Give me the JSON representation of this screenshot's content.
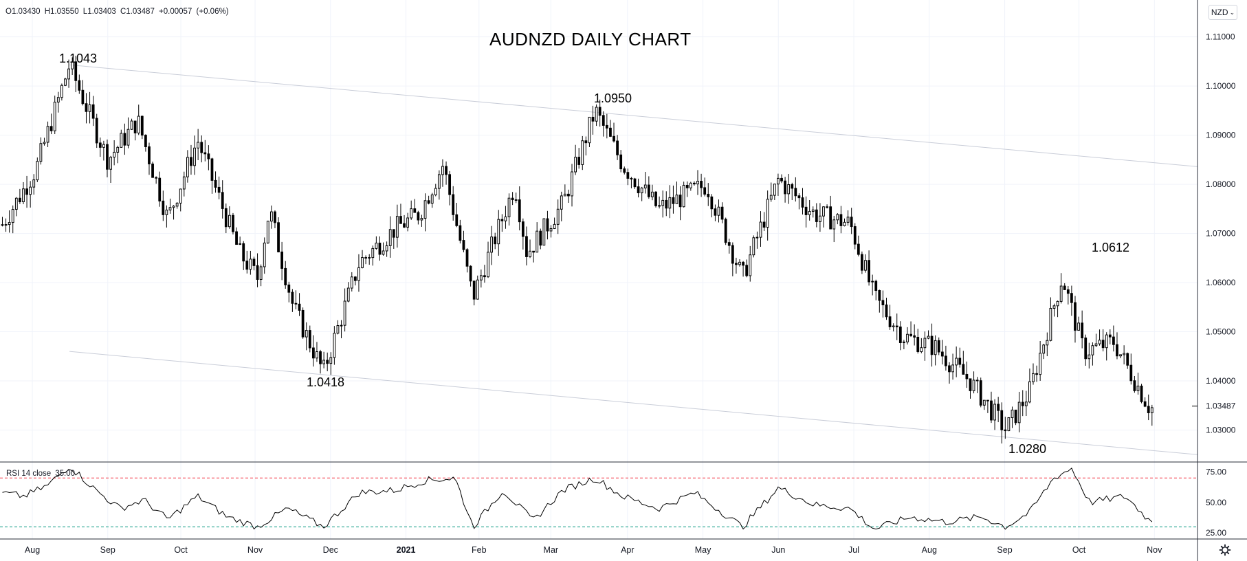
{
  "header": {
    "ohlc": {
      "open": "O1.03430",
      "high": "H1.03550",
      "low": "L1.03403",
      "close": "C1.03487",
      "change": "+0.00057",
      "change_pct": "(+0.06%)"
    },
    "currency_button": "NZD"
  },
  "rsi_legend": {
    "label": "RSI 14 close",
    "value": "35.00"
  },
  "colors": {
    "candle": "#000000",
    "grid": "#f0f3fa",
    "channel": "#c9cdd8",
    "rsi_upper": "#f23645",
    "rsi_lower": "#089981",
    "axis_text": "#131722"
  },
  "icons": {
    "settings": "gear-icon",
    "dropdown": "chevron-down-icon"
  },
  "chart_data": [
    {
      "type": "candlestick",
      "title": "AUDNZD DAILY CHART",
      "ylim": [
        1.0235,
        1.1175
      ],
      "y_ticks": [
        "1.11000",
        "1.10000",
        "1.09000",
        "1.08000",
        "1.07000",
        "1.06000",
        "1.05000",
        "1.04000",
        "1.03000"
      ],
      "last_price": "1.03487",
      "x_ticks": [
        "Aug",
        "Sep",
        "Oct",
        "Nov",
        "Dec",
        "2021",
        "Feb",
        "Mar",
        "Apr",
        "May",
        "Jun",
        "Jul",
        "Aug",
        "Sep",
        "Oct",
        "Nov"
      ],
      "grid": true,
      "annotations": [
        {
          "text": "1.1043",
          "value": 1.1043,
          "x": "Aug"
        },
        {
          "text": "1.0950",
          "value": 1.095,
          "x": "Mar"
        },
        {
          "text": "1.0418",
          "value": 1.0418,
          "x": "Dec"
        },
        {
          "text": "1.0280",
          "value": 1.028,
          "x": "Sep"
        },
        {
          "text": "1.0612",
          "value": 1.0612,
          "x": "Oct"
        }
      ],
      "channel": {
        "upper": [
          [
            0.058,
            1.1043
          ],
          [
            1.0,
            1.0836
          ]
        ],
        "lower": [
          [
            0.058,
            1.046
          ],
          [
            1.0,
            1.025
          ]
        ]
      },
      "anchors": [
        [
          0.0,
          1.071
        ],
        [
          0.03,
          1.083
        ],
        [
          0.058,
          1.1043
        ],
        [
          0.09,
          1.085
        ],
        [
          0.115,
          1.093
        ],
        [
          0.14,
          1.073
        ],
        [
          0.165,
          1.089
        ],
        [
          0.2,
          1.066
        ],
        [
          0.215,
          1.061
        ],
        [
          0.225,
          1.075
        ],
        [
          0.245,
          1.055
        ],
        [
          0.27,
          1.0418
        ],
        [
          0.3,
          1.064
        ],
        [
          0.33,
          1.071
        ],
        [
          0.35,
          1.074
        ],
        [
          0.37,
          1.084
        ],
        [
          0.395,
          1.057
        ],
        [
          0.43,
          1.08
        ],
        [
          0.44,
          1.066
        ],
        [
          0.47,
          1.076
        ],
        [
          0.497,
          1.095
        ],
        [
          0.52,
          1.084
        ],
        [
          0.55,
          1.075
        ],
        [
          0.59,
          1.08
        ],
        [
          0.62,
          1.061
        ],
        [
          0.65,
          1.081
        ],
        [
          0.68,
          1.074
        ],
        [
          0.71,
          1.072
        ],
        [
          0.73,
          1.057
        ],
        [
          0.755,
          1.049
        ],
        [
          0.78,
          1.047
        ],
        [
          0.81,
          1.04
        ],
        [
          0.84,
          1.03
        ],
        [
          0.86,
          1.038
        ],
        [
          0.887,
          1.0612
        ],
        [
          0.905,
          1.046
        ],
        [
          0.93,
          1.048
        ],
        [
          0.96,
          1.0345
        ]
      ]
    },
    {
      "type": "line",
      "title": "RSI 14 close",
      "ylim": [
        20,
        82
      ],
      "y_ticks": [
        "75.00",
        "50.00",
        "25.00"
      ],
      "levels": [
        70,
        30
      ],
      "last_value": 35.0,
      "anchors": [
        [
          0.0,
          58
        ],
        [
          0.02,
          55
        ],
        [
          0.04,
          64
        ],
        [
          0.058,
          80
        ],
        [
          0.08,
          60
        ],
        [
          0.1,
          45
        ],
        [
          0.12,
          52
        ],
        [
          0.14,
          36
        ],
        [
          0.165,
          55
        ],
        [
          0.19,
          38
        ],
        [
          0.215,
          30
        ],
        [
          0.24,
          45
        ],
        [
          0.27,
          30
        ],
        [
          0.3,
          58
        ],
        [
          0.33,
          60
        ],
        [
          0.355,
          68
        ],
        [
          0.38,
          70
        ],
        [
          0.395,
          30
        ],
        [
          0.42,
          60
        ],
        [
          0.445,
          35
        ],
        [
          0.47,
          60
        ],
        [
          0.497,
          70
        ],
        [
          0.52,
          55
        ],
        [
          0.55,
          45
        ],
        [
          0.58,
          58
        ],
        [
          0.62,
          30
        ],
        [
          0.65,
          62
        ],
        [
          0.68,
          48
        ],
        [
          0.71,
          45
        ],
        [
          0.73,
          28
        ],
        [
          0.76,
          38
        ],
        [
          0.79,
          34
        ],
        [
          0.82,
          38
        ],
        [
          0.84,
          30
        ],
        [
          0.86,
          42
        ],
        [
          0.88,
          70
        ],
        [
          0.895,
          78
        ],
        [
          0.91,
          50
        ],
        [
          0.94,
          55
        ],
        [
          0.96,
          35
        ]
      ]
    }
  ]
}
